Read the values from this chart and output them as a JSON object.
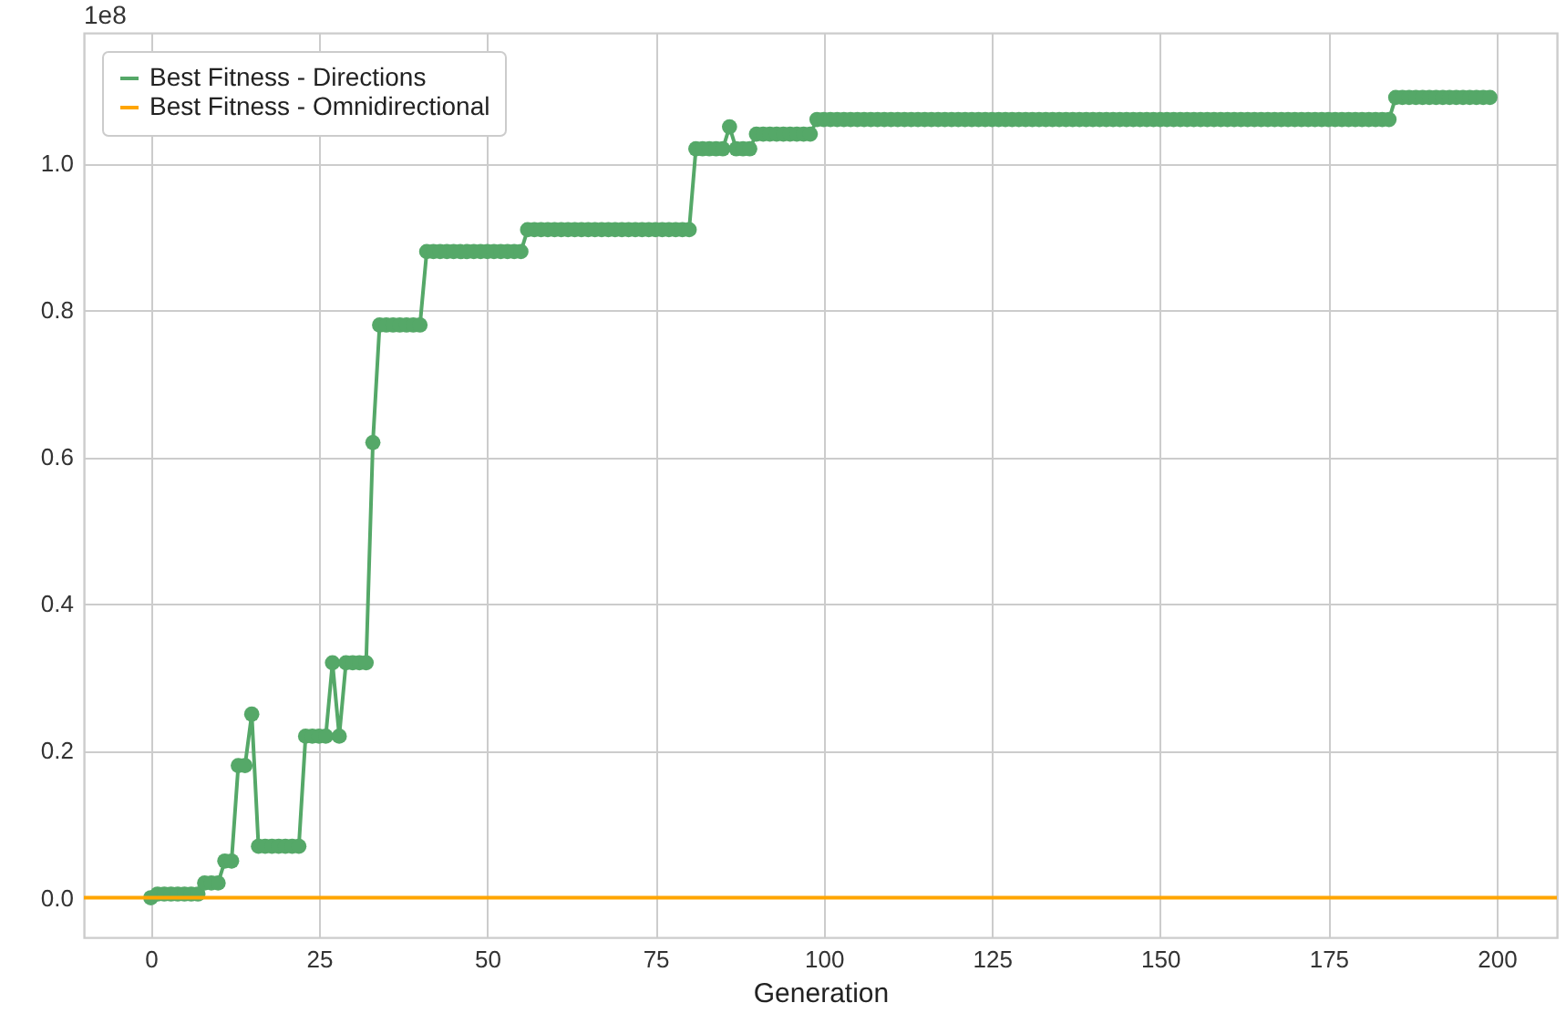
{
  "chart_data": {
    "type": "line",
    "xlabel": "Generation",
    "annotations": [
      "1e8"
    ],
    "x": [
      0,
      1,
      2,
      3,
      4,
      5,
      6,
      7,
      8,
      9,
      10,
      11,
      12,
      13,
      14,
      15,
      16,
      17,
      18,
      19,
      20,
      21,
      22,
      23,
      24,
      25,
      26,
      27,
      28,
      29,
      30,
      31,
      32,
      33,
      34,
      35,
      36,
      37,
      38,
      39,
      40,
      41,
      42,
      43,
      44,
      45,
      46,
      47,
      48,
      49,
      50,
      51,
      52,
      53,
      54,
      55,
      56,
      57,
      58,
      59,
      60,
      61,
      62,
      63,
      64,
      65,
      66,
      67,
      68,
      69,
      70,
      71,
      72,
      73,
      74,
      75,
      76,
      77,
      78,
      79,
      80,
      81,
      82,
      83,
      84,
      85,
      86,
      87,
      88,
      89,
      90,
      91,
      92,
      93,
      94,
      95,
      96,
      97,
      98,
      99,
      100,
      101,
      102,
      103,
      104,
      105,
      106,
      107,
      108,
      109,
      110,
      111,
      112,
      113,
      114,
      115,
      116,
      117,
      118,
      119,
      120,
      121,
      122,
      123,
      124,
      125,
      126,
      127,
      128,
      129,
      130,
      131,
      132,
      133,
      134,
      135,
      136,
      137,
      138,
      139,
      140,
      141,
      142,
      143,
      144,
      145,
      146,
      147,
      148,
      149,
      150,
      151,
      152,
      153,
      154,
      155,
      156,
      157,
      158,
      159,
      160,
      161,
      162,
      163,
      164,
      165,
      166,
      167,
      168,
      169,
      170,
      171,
      172,
      173,
      174,
      175,
      176,
      177,
      178,
      179,
      180,
      181,
      182,
      183,
      184,
      185,
      186,
      187,
      188,
      189,
      190,
      191,
      192,
      193,
      194,
      195,
      196,
      197,
      198,
      199
    ],
    "series": [
      {
        "name": "Best Fitness - Directions",
        "color": "#55a868",
        "values": [
          0,
          0.005,
          0.005,
          0.005,
          0.005,
          0.005,
          0.005,
          0.005,
          0.02,
          0.02,
          0.02,
          0.05,
          0.05,
          0.18,
          0.18,
          0.25,
          0.07,
          0.07,
          0.07,
          0.07,
          0.07,
          0.07,
          0.07,
          0.22,
          0.22,
          0.22,
          0.22,
          0.32,
          0.22,
          0.32,
          0.32,
          0.32,
          0.32,
          0.62,
          0.78,
          0.78,
          0.78,
          0.78,
          0.78,
          0.78,
          0.78,
          0.88,
          0.88,
          0.88,
          0.88,
          0.88,
          0.88,
          0.88,
          0.88,
          0.88,
          0.88,
          0.88,
          0.88,
          0.88,
          0.88,
          0.88,
          0.91,
          0.91,
          0.91,
          0.91,
          0.91,
          0.91,
          0.91,
          0.91,
          0.91,
          0.91,
          0.91,
          0.91,
          0.91,
          0.91,
          0.91,
          0.91,
          0.91,
          0.91,
          0.91,
          0.91,
          0.91,
          0.91,
          0.91,
          0.91,
          0.91,
          1.02,
          1.02,
          1.02,
          1.02,
          1.02,
          1.05,
          1.02,
          1.02,
          1.02,
          1.04,
          1.04,
          1.04,
          1.04,
          1.04,
          1.04,
          1.04,
          1.04,
          1.04,
          1.06,
          1.06,
          1.06,
          1.06,
          1.06,
          1.06,
          1.06,
          1.06,
          1.06,
          1.06,
          1.06,
          1.06,
          1.06,
          1.06,
          1.06,
          1.06,
          1.06,
          1.06,
          1.06,
          1.06,
          1.06,
          1.06,
          1.06,
          1.06,
          1.06,
          1.06,
          1.06,
          1.06,
          1.06,
          1.06,
          1.06,
          1.06,
          1.06,
          1.06,
          1.06,
          1.06,
          1.06,
          1.06,
          1.06,
          1.06,
          1.06,
          1.06,
          1.06,
          1.06,
          1.06,
          1.06,
          1.06,
          1.06,
          1.06,
          1.06,
          1.06,
          1.06,
          1.06,
          1.06,
          1.06,
          1.06,
          1.06,
          1.06,
          1.06,
          1.06,
          1.06,
          1.06,
          1.06,
          1.06,
          1.06,
          1.06,
          1.06,
          1.06,
          1.06,
          1.06,
          1.06,
          1.06,
          1.06,
          1.06,
          1.06,
          1.06,
          1.06,
          1.06,
          1.06,
          1.06,
          1.06,
          1.06,
          1.06,
          1.06,
          1.06,
          1.06,
          1.09,
          1.09,
          1.09,
          1.09,
          1.09,
          1.09,
          1.09,
          1.09,
          1.09,
          1.09,
          1.09,
          1.09,
          1.09,
          1.09,
          1.09
        ]
      }
    ],
    "ref_lines": [
      {
        "axis": "y",
        "value": 0,
        "label": "Best Fitness - Omnidirectional",
        "color": "#ffa500"
      }
    ],
    "marker": "circle",
    "line_style": "solid",
    "grid": true,
    "legend": "top left",
    "xlim": [
      -9.95,
      208.95
    ],
    "xticks": [
      0,
      25,
      50,
      75,
      100,
      125,
      150,
      175,
      200
    ],
    "ylim": [
      -0.054,
      1.178
    ],
    "yticks": [
      {
        "value": 0,
        "label": "0.0"
      },
      0.2,
      0.4,
      0.6,
      0.8,
      {
        "value": 1,
        "label": "1.0"
      }
    ]
  }
}
